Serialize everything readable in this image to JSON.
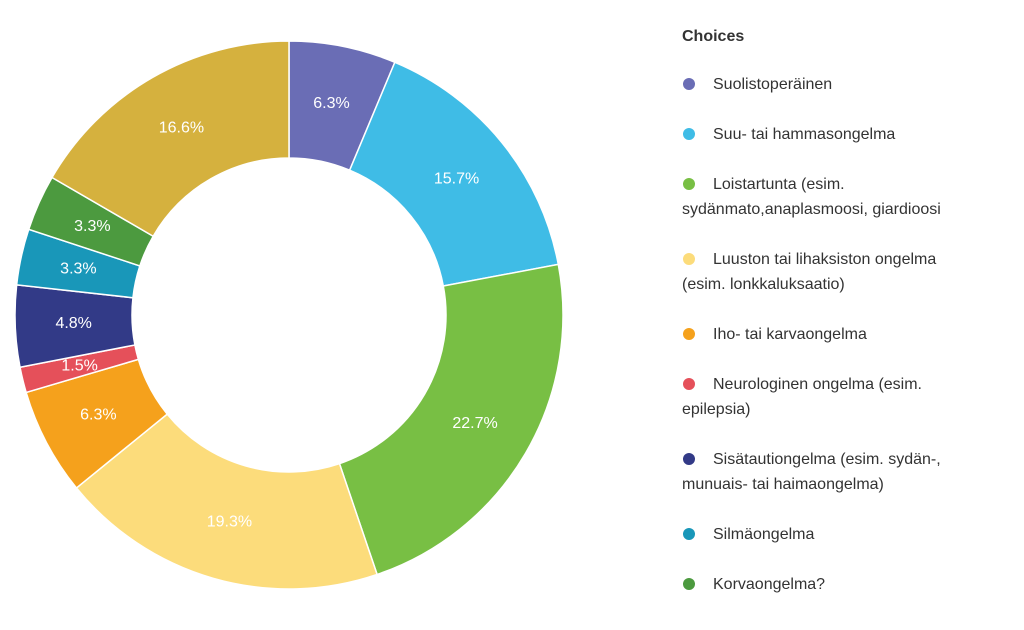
{
  "chart_data": {
    "type": "donut",
    "legend_title": "Choices",
    "categories": [
      "Suolistoperäinen",
      "Suu- tai hammasongelma",
      "Loistartunta (esim. sydänmato,anaplasmoosi, giardioosi",
      "Luuston tai lihaksiston ongelma (esim. lonkkaluksaatio)",
      "Iho- tai karvaongelma",
      "Neurologinen ongelma (esim. epilepsia)",
      "Sisätautiongelma (esim. sydän-, munuais- tai haimaongelma)",
      "Silmäongelma",
      "Korvaongelma?",
      null
    ],
    "values": [
      6.3,
      15.7,
      22.7,
      19.3,
      6.3,
      1.5,
      4.8,
      3.3,
      3.3,
      16.6
    ],
    "value_labels": [
      "6.3%",
      "15.7%",
      "22.7%",
      "19.3%",
      "6.3%",
      "1.5%",
      "4.8%",
      "3.3%",
      "3.3%",
      "16.6%"
    ],
    "colors": [
      "#6a6db5",
      "#3fbce6",
      "#78bf44",
      "#fcdc7b",
      "#f5a11c",
      "#e5505a",
      "#323a87",
      "#1997b9",
      "#4c9a3f",
      "#d5b13e"
    ],
    "legend": "right"
  }
}
